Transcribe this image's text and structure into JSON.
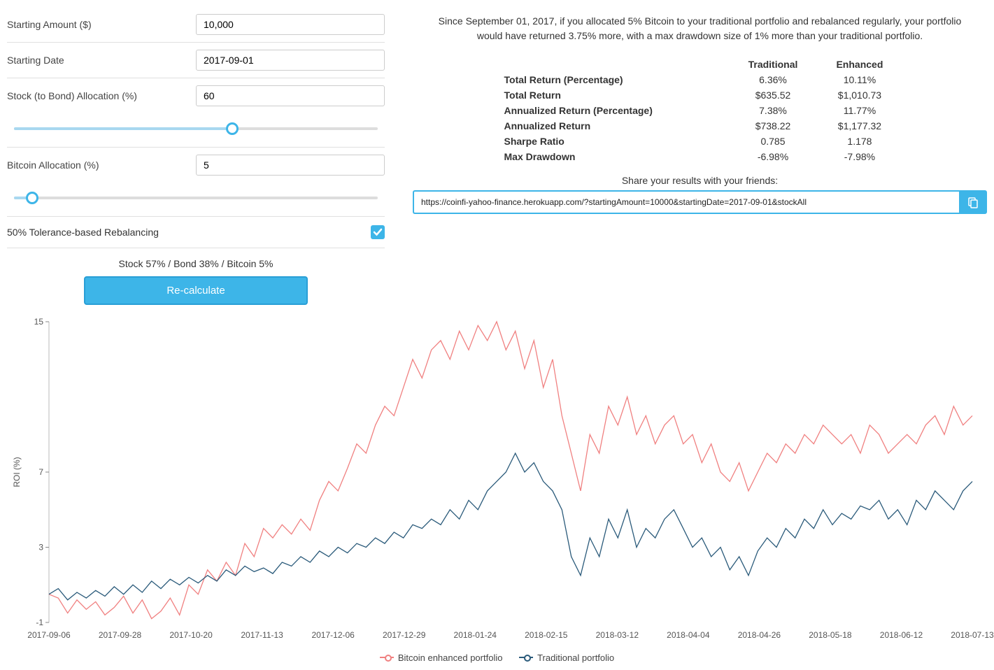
{
  "form": {
    "startingAmount": {
      "label": "Starting Amount ($)",
      "value": "10,000"
    },
    "startingDate": {
      "label": "Starting Date",
      "value": "2017-09-01"
    },
    "stockAllocation": {
      "label": "Stock (to Bond) Allocation (%)",
      "value": "60",
      "percent": 60
    },
    "bitcoinAllocation": {
      "label": "Bitcoin Allocation (%)",
      "value": "5",
      "percent": 5
    },
    "rebalancing": {
      "label": "50% Tolerance-based Rebalancing",
      "checked": true
    },
    "allocSummary": "Stock 57% / Bond 38% / Bitcoin 5%",
    "recalcLabel": "Re-calculate"
  },
  "summary": "Since September 01, 2017, if you allocated 5% Bitcoin to your traditional portfolio and rebalanced regularly, your portfolio would have returned 3.75% more, with a max drawdown size of 1% more than your traditional portfolio.",
  "results": {
    "headers": [
      "",
      "Traditional",
      "Enhanced"
    ],
    "rows": [
      [
        "Total Return (Percentage)",
        "6.36%",
        "10.11%"
      ],
      [
        "Total Return",
        "$635.52",
        "$1,010.73"
      ],
      [
        "Annualized Return (Percentage)",
        "7.38%",
        "11.77%"
      ],
      [
        "Annualized Return",
        "$738.22",
        "$1,177.32"
      ],
      [
        "Sharpe Ratio",
        "0.785",
        "1.178"
      ],
      [
        "Max Drawdown",
        "-6.98%",
        "-7.98%"
      ]
    ]
  },
  "share": {
    "label": "Share your results with your friends:",
    "url": "https://coinfi-yahoo-finance.herokuapp.com/?startingAmount=10000&startingDate=2017-09-01&stockAll"
  },
  "chart": {
    "ylabel": "ROI (%)",
    "ylim": [
      -1,
      15
    ],
    "yticks": [
      -1,
      3,
      7,
      15
    ],
    "xlabels": [
      "2017-09-06",
      "2017-09-28",
      "2017-10-20",
      "2017-11-13",
      "2017-12-06",
      "2017-12-29",
      "2018-01-24",
      "2018-02-15",
      "2018-03-12",
      "2018-04-04",
      "2018-04-26",
      "2018-05-18",
      "2018-06-12",
      "2018-07-13"
    ],
    "colors": {
      "enhanced": "#f08080",
      "traditional": "#2a5a7a",
      "grid": "#bbbbbb",
      "bg": "#ffffff"
    },
    "line_width": 1.3,
    "legend": {
      "enhanced": "Bitcoin enhanced portfolio",
      "traditional": "Traditional portfolio"
    },
    "enhanced": [
      0.5,
      0.3,
      -0.5,
      0.2,
      -0.3,
      0.1,
      -0.6,
      -0.2,
      0.4,
      -0.5,
      0.2,
      -0.8,
      -0.4,
      0.3,
      -0.6,
      1.0,
      0.5,
      1.8,
      1.2,
      2.2,
      1.5,
      3.2,
      2.5,
      4.0,
      3.5,
      4.2,
      3.7,
      4.5,
      3.9,
      5.5,
      6.5,
      6.0,
      7.2,
      8.5,
      8.0,
      9.5,
      10.5,
      10.0,
      11.5,
      13.0,
      12.0,
      13.5,
      14.0,
      13.0,
      14.5,
      13.5,
      14.8,
      14.0,
      15.0,
      13.5,
      14.5,
      12.5,
      14.0,
      11.5,
      13.0,
      10.0,
      8.0,
      6.0,
      9.0,
      8.0,
      10.5,
      9.5,
      11.0,
      9.0,
      10.0,
      8.5,
      9.5,
      10.0,
      8.5,
      9.0,
      7.5,
      8.5,
      7.0,
      6.5,
      7.5,
      6.0,
      7.0,
      8.0,
      7.5,
      8.5,
      8.0,
      9.0,
      8.5,
      9.5,
      9.0,
      8.5,
      9.0,
      8.0,
      9.5,
      9.0,
      8.0,
      8.5,
      9.0,
      8.5,
      9.5,
      10.0,
      9.0,
      10.5,
      9.5,
      10.0
    ],
    "traditional": [
      0.5,
      0.8,
      0.2,
      0.6,
      0.3,
      0.7,
      0.4,
      0.9,
      0.5,
      1.0,
      0.6,
      1.2,
      0.8,
      1.3,
      1.0,
      1.4,
      1.1,
      1.5,
      1.2,
      1.8,
      1.5,
      2.0,
      1.7,
      1.9,
      1.6,
      2.2,
      2.0,
      2.5,
      2.2,
      2.8,
      2.5,
      3.0,
      2.7,
      3.2,
      3.0,
      3.5,
      3.2,
      3.8,
      3.5,
      4.2,
      4.0,
      4.5,
      4.2,
      5.0,
      4.5,
      5.5,
      5.0,
      6.0,
      6.5,
      7.0,
      8.0,
      7.0,
      7.5,
      6.5,
      6.0,
      5.0,
      2.5,
      1.5,
      3.5,
      2.5,
      4.5,
      3.5,
      5.0,
      3.0,
      4.0,
      3.5,
      4.5,
      5.0,
      4.0,
      3.0,
      3.5,
      2.5,
      3.0,
      1.8,
      2.5,
      1.5,
      2.8,
      3.5,
      3.0,
      4.0,
      3.5,
      4.5,
      4.0,
      5.0,
      4.2,
      4.8,
      4.5,
      5.2,
      5.0,
      5.5,
      4.5,
      5.0,
      4.2,
      5.5,
      5.0,
      6.0,
      5.5,
      5.0,
      6.0,
      6.5
    ]
  }
}
